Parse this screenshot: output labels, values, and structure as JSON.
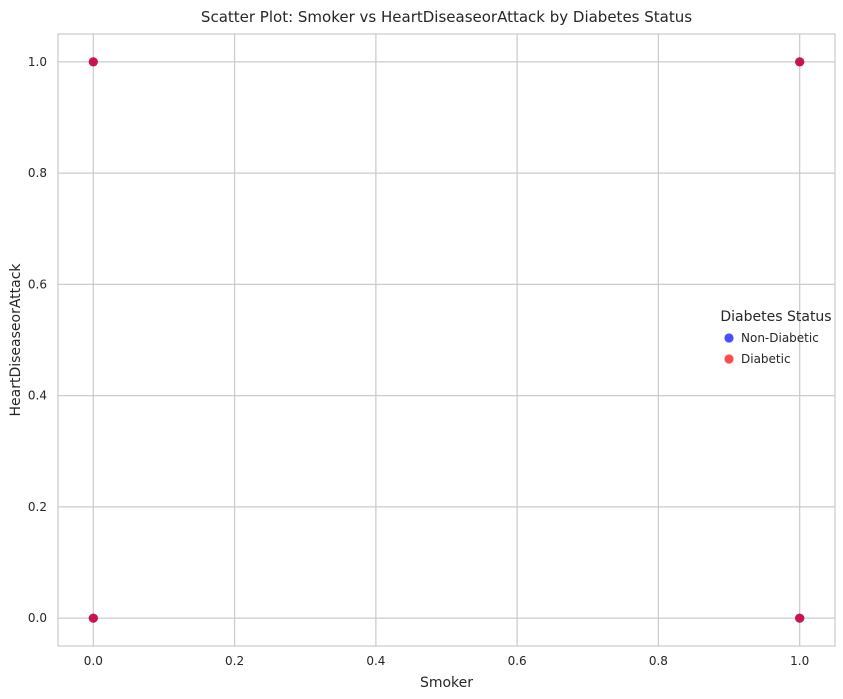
{
  "chart_data": {
    "type": "scatter",
    "title": "Scatter Plot: Smoker vs HeartDiseaseorAttack by Diabetes Status",
    "xlabel": "Smoker",
    "ylabel": "HeartDiseaseorAttack",
    "xlim": [
      -0.05,
      1.05
    ],
    "ylim": [
      -0.05,
      1.05
    ],
    "xticks": [
      0.0,
      0.2,
      0.4,
      0.6,
      0.8,
      1.0
    ],
    "yticks": [
      0.0,
      0.2,
      0.4,
      0.6,
      0.8,
      1.0
    ],
    "xtick_labels": [
      "0.0",
      "0.2",
      "0.4",
      "0.6",
      "0.8",
      "1.0"
    ],
    "ytick_labels": [
      "0.0",
      "0.2",
      "0.4",
      "0.6",
      "0.8",
      "1.0"
    ],
    "grid": true,
    "legend": {
      "title": "Diabetes Status",
      "placement": "center-right"
    },
    "series": [
      {
        "name": "Non-Diabetic",
        "color": "#0000ff",
        "points": [
          {
            "x": 0.0,
            "y": 0.0
          },
          {
            "x": 0.0,
            "y": 1.0
          },
          {
            "x": 1.0,
            "y": 0.0
          },
          {
            "x": 1.0,
            "y": 1.0
          }
        ]
      },
      {
        "name": "Diabetic",
        "color": "#ff0000",
        "points": [
          {
            "x": 0.0,
            "y": 0.0
          },
          {
            "x": 0.0,
            "y": 1.0
          },
          {
            "x": 1.0,
            "y": 0.0
          },
          {
            "x": 1.0,
            "y": 1.0
          }
        ]
      }
    ]
  }
}
